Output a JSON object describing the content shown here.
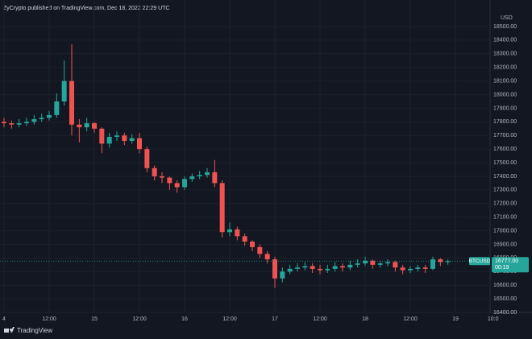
{
  "chart_data": {
    "type": "candlestick",
    "source": "ZyCrypto published on TradingView.com, Dec 18, 2022 22:29 UTC",
    "currency": "USD",
    "symbol": "BTCUSD",
    "brand": "TradingView",
    "last_price": {
      "value": 16777,
      "label": "16777.00"
    },
    "countdown": "00:19",
    "up_color": "#26a69a",
    "down_color": "#ef5350",
    "grid": true,
    "categories": [
      "4",
      null,
      null,
      null,
      null,
      null,
      "12:00",
      null,
      null,
      null,
      null,
      null,
      "15",
      null,
      null,
      null,
      null,
      null,
      "12:00",
      null,
      null,
      null,
      null,
      null,
      "16",
      null,
      null,
      null,
      null,
      null,
      "12:00",
      null,
      null,
      null,
      null,
      null,
      "17",
      null,
      null,
      null,
      null,
      null,
      "12:00",
      null,
      null,
      null,
      null,
      null,
      "18",
      null,
      null,
      null,
      null,
      null,
      "12:00",
      null,
      null,
      null,
      null,
      null,
      "19",
      null,
      null,
      null,
      null,
      "10:0"
    ],
    "open": [
      17800,
      17790,
      17780,
      17790,
      17800,
      17820,
      17830,
      17850,
      17950,
      18100,
      17780,
      17760,
      17790,
      17750,
      17640,
      17690,
      17700,
      17660,
      17680,
      17600,
      17460,
      17400,
      17390,
      17350,
      17320,
      17380,
      17400,
      17410,
      17430,
      17350,
      16990,
      17010,
      16960,
      16920,
      16880,
      16830,
      16790,
      16650,
      16700,
      16720,
      16730,
      16740,
      16720,
      16710,
      16720,
      16740,
      16730,
      16750,
      16760,
      16780,
      16750,
      16760,
      16770,
      16730,
      16710,
      16720,
      16730,
      16720,
      16790,
      16770,
      null,
      null,
      null,
      null,
      null,
      null
    ],
    "high": [
      17830,
      17810,
      17820,
      17830,
      17850,
      17860,
      17880,
      18010,
      18250,
      18370,
      17820,
      17830,
      17800,
      17760,
      17720,
      17730,
      17720,
      17710,
      17720,
      17620,
      17480,
      17430,
      17400,
      17370,
      17400,
      17420,
      17440,
      17460,
      17520,
      17370,
      17060,
      17030,
      16980,
      16930,
      16900,
      16850,
      16810,
      16730,
      16750,
      16760,
      16770,
      16760,
      16750,
      16750,
      16770,
      16760,
      16780,
      16790,
      16810,
      16790,
      16780,
      16790,
      16780,
      16750,
      16740,
      16750,
      16750,
      16810,
      16800,
      16790,
      null,
      null,
      null,
      null,
      null,
      null
    ],
    "low": [
      17760,
      17750,
      17760,
      17770,
      17780,
      17800,
      17810,
      17830,
      17920,
      17700,
      17650,
      17730,
      17720,
      17570,
      17610,
      17660,
      17630,
      17640,
      17570,
      17430,
      17370,
      17350,
      17300,
      17280,
      17300,
      17360,
      17380,
      17390,
      17320,
      16950,
      16960,
      16930,
      16890,
      16850,
      16800,
      16760,
      16580,
      16620,
      16680,
      16700,
      16710,
      16690,
      16680,
      16690,
      16700,
      16700,
      16710,
      16730,
      16740,
      16720,
      16730,
      16740,
      16700,
      16680,
      16690,
      16700,
      16690,
      16710,
      16740,
      16750,
      null,
      null,
      null,
      null,
      null,
      null
    ],
    "close": [
      17790,
      17780,
      17790,
      17800,
      17820,
      17830,
      17850,
      17950,
      18100,
      17780,
      17760,
      17790,
      17750,
      17640,
      17690,
      17700,
      17660,
      17680,
      17600,
      17460,
      17400,
      17390,
      17350,
      17320,
      17380,
      17400,
      17410,
      17430,
      17350,
      16990,
      17010,
      16960,
      16920,
      16880,
      16830,
      16790,
      16650,
      16700,
      16720,
      16730,
      16740,
      16720,
      16710,
      16720,
      16740,
      16730,
      16750,
      16760,
      16780,
      16750,
      16760,
      16770,
      16730,
      16710,
      16720,
      16730,
      16720,
      16790,
      16770,
      16777,
      null,
      null,
      null,
      null,
      null,
      null
    ],
    "ylim": [
      16400,
      18500
    ],
    "yticks": [
      {
        "value": 16400,
        "label": "16400.00"
      },
      {
        "value": 16500,
        "label": "16500.00"
      },
      {
        "value": 16600,
        "label": "16600.00"
      },
      {
        "value": 16700,
        "label": "16700.00"
      },
      {
        "value": 16800,
        "label": "16800.00"
      },
      {
        "value": 16900,
        "label": "16900.00"
      },
      {
        "value": 17000,
        "label": "17000.00"
      },
      {
        "value": 17100,
        "label": "17100.00"
      },
      {
        "value": 17200,
        "label": "17200.00"
      },
      {
        "value": 17300,
        "label": "17300.00"
      },
      {
        "value": 17400,
        "label": "17400.00"
      },
      {
        "value": 17500,
        "label": "17500.00"
      },
      {
        "value": 17600,
        "label": "17600.00"
      },
      {
        "value": 17700,
        "label": "17700.00"
      },
      {
        "value": 17800,
        "label": "17800.00"
      },
      {
        "value": 17900,
        "label": "17900.00"
      },
      {
        "value": 18000,
        "label": "18000.00"
      },
      {
        "value": 18100,
        "label": "18100.00"
      },
      {
        "value": 18200,
        "label": "18200.00"
      },
      {
        "value": 18300,
        "label": "18300.00"
      },
      {
        "value": 18400,
        "label": "18400.00"
      },
      {
        "value": 18500,
        "label": "18500.00"
      }
    ]
  }
}
